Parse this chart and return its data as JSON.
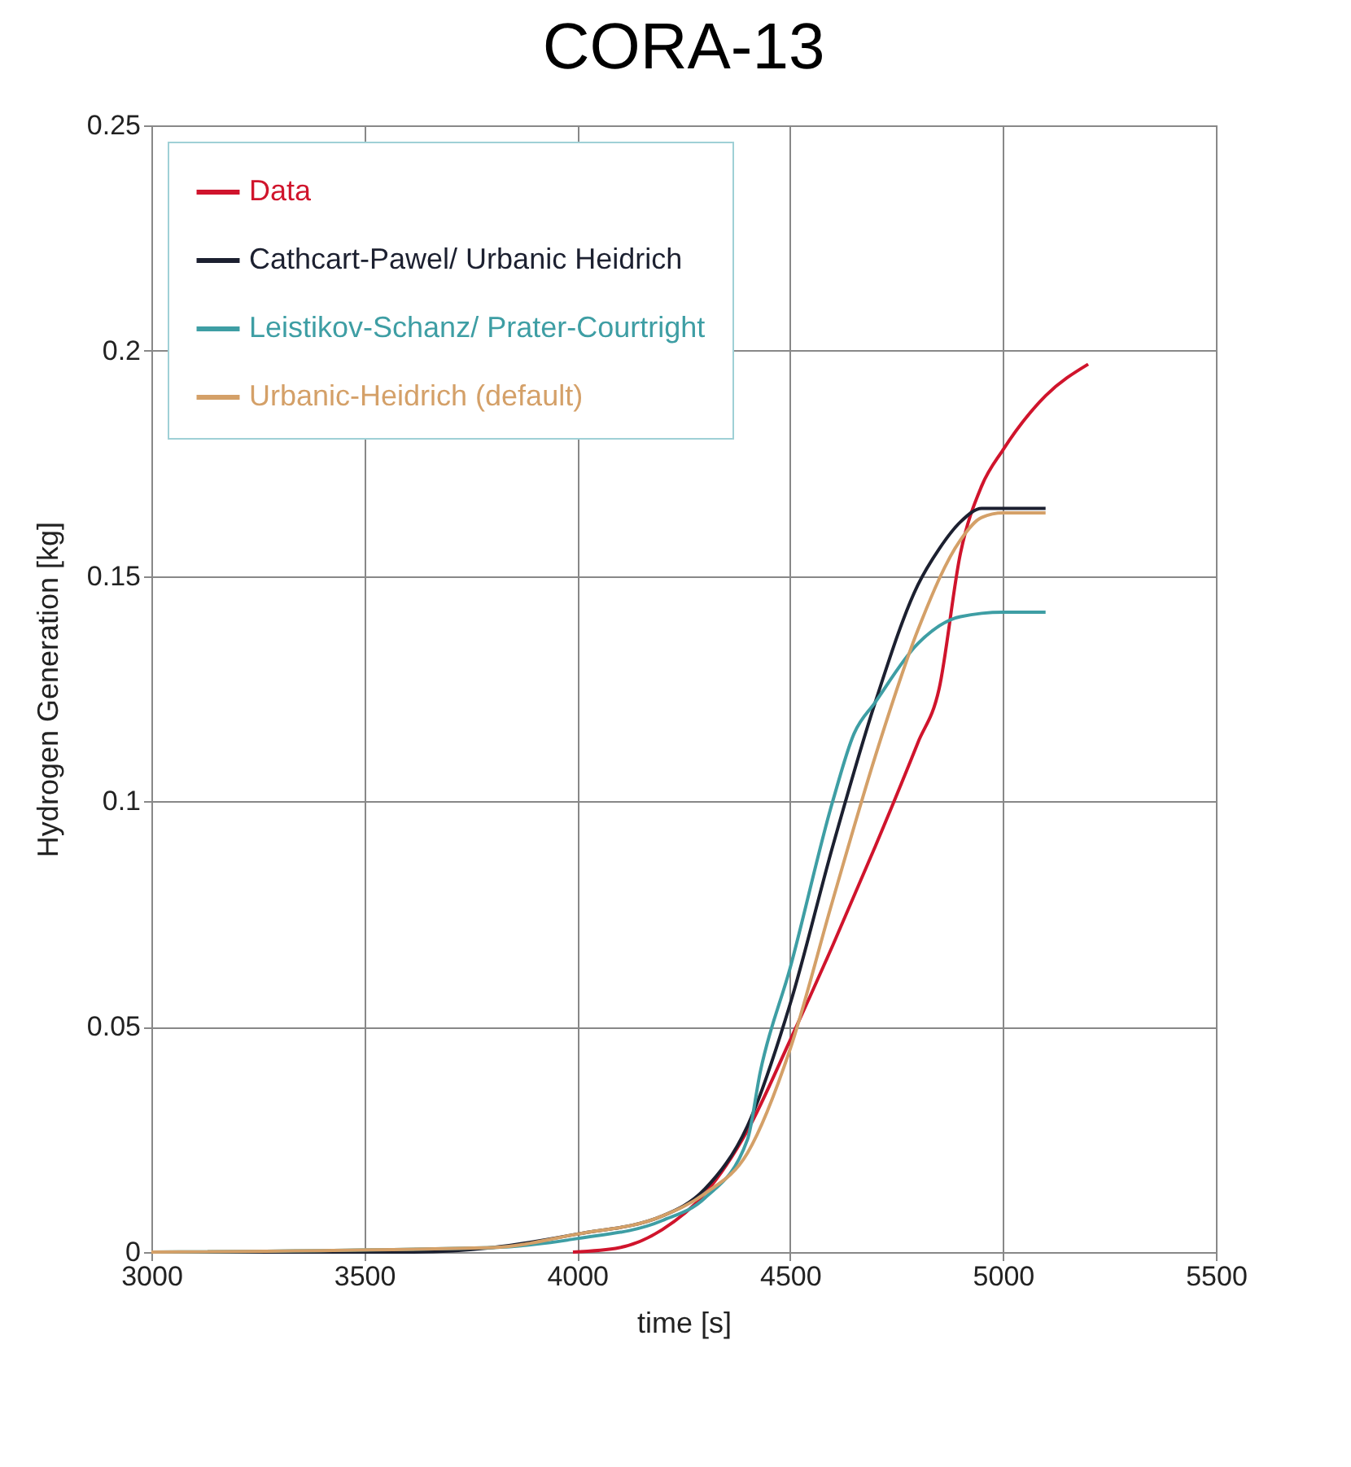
{
  "chart_data": {
    "type": "line",
    "title": "CORA-13",
    "xlabel": "time [s]",
    "ylabel": "Hydrogen Generation  [kg]",
    "xlim": [
      3000,
      5500
    ],
    "xticks": [
      3000,
      3500,
      4000,
      4500,
      5000,
      5500
    ],
    "ylim": [
      0,
      0.25
    ],
    "yticks": [
      0,
      0.05,
      0.1,
      0.15,
      0.2,
      0.25
    ],
    "grid": true,
    "legend": "top left",
    "line_style": "solid",
    "series": [
      {
        "name": "Data",
        "color": "#d0142c",
        "x": [
          3990,
          4100,
          4200,
          4300,
          4400,
          4500,
          4600,
          4700,
          4800,
          4850,
          4900,
          4950,
          5000,
          5100,
          5200
        ],
        "values": [
          0,
          0.001,
          0.005,
          0.013,
          0.027,
          0.047,
          0.068,
          0.09,
          0.113,
          0.125,
          0.155,
          0.17,
          0.178,
          0.19,
          0.197
        ]
      },
      {
        "name": "Cathcart-Pawel/ Urbanic Heidrich",
        "color": "#1c2030",
        "x": [
          3000,
          3600,
          3800,
          4000,
          4200,
          4300,
          4400,
          4500,
          4600,
          4700,
          4800,
          4850,
          4900,
          4950,
          5100
        ],
        "values": [
          0,
          0,
          0.001,
          0.004,
          0.008,
          0.014,
          0.028,
          0.055,
          0.09,
          0.122,
          0.148,
          0.156,
          0.162,
          0.165,
          0.165
        ]
      },
      {
        "name": "Leistikov-Schanz/ Prater-Courtright",
        "color": "#3e9ea4",
        "x": [
          3000,
          3800,
          4000,
          4200,
          4300,
          4400,
          4430,
          4500,
          4600,
          4650,
          4700,
          4800,
          4900,
          5000,
          5100
        ],
        "values": [
          0,
          0.001,
          0.003,
          0.007,
          0.012,
          0.025,
          0.04,
          0.063,
          0.1,
          0.115,
          0.122,
          0.135,
          0.141,
          0.142,
          0.142
        ]
      },
      {
        "name": "Urbanic-Heidrich (default)",
        "color": "#d4a068",
        "x": [
          3000,
          3800,
          4000,
          4200,
          4300,
          4400,
          4500,
          4600,
          4700,
          4800,
          4900,
          4950,
          5000,
          5100
        ],
        "values": [
          0,
          0.001,
          0.004,
          0.008,
          0.013,
          0.022,
          0.045,
          0.078,
          0.11,
          0.138,
          0.158,
          0.163,
          0.164,
          0.164
        ]
      }
    ]
  }
}
